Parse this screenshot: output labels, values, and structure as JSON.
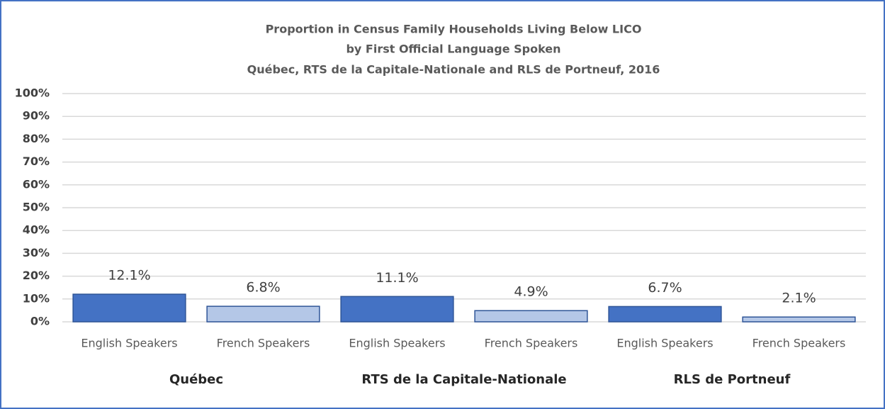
{
  "chart_data": {
    "type": "bar",
    "title": [
      "Proportion in Census Family Households Living Below LICO",
      "by First Official Language Spoken",
      "Québec, RTS de la Capitale-Nationale and RLS de Portneuf, 2016"
    ],
    "categories": [
      "English Speakers",
      "French Speakers",
      "English Speakers",
      "French Speakers",
      "English Speakers",
      "French Speakers"
    ],
    "groups": [
      "Québec",
      "RTS de la Capitale-Nationale",
      "RLS de Portneuf"
    ],
    "values": [
      12.1,
      6.8,
      11.1,
      4.9,
      6.7,
      2.1
    ],
    "value_labels": [
      "12.1%",
      "6.8%",
      "11.1%",
      "4.9%",
      "6.7%",
      "2.1%"
    ],
    "colors": [
      "#4472c4",
      "#b4c7e7",
      "#4472c4",
      "#b4c7e7",
      "#4472c4",
      "#b4c7e7"
    ],
    "ylim": [
      0,
      100
    ],
    "yticks": [
      {
        "value": 0,
        "label": "0%"
      },
      {
        "value": 10,
        "label": "10%"
      },
      {
        "value": 20,
        "label": "20%"
      },
      {
        "value": 30,
        "label": "30%"
      },
      {
        "value": 40,
        "label": "40%"
      },
      {
        "value": 50,
        "label": "50%"
      },
      {
        "value": 60,
        "label": "60%"
      },
      {
        "value": 70,
        "label": "70%"
      },
      {
        "value": 80,
        "label": "80%"
      },
      {
        "value": 90,
        "label": "90%"
      },
      {
        "value": 100,
        "label": "100%"
      }
    ],
    "grid": true
  }
}
